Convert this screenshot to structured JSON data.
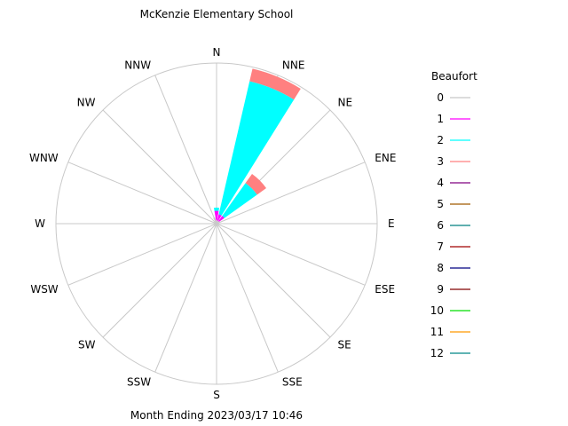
{
  "chart_data": {
    "type": "windrose",
    "title": "McKenzie Elementary School",
    "footer": "Month Ending 2023/03/17 10:46",
    "directions": [
      "N",
      "NNE",
      "NE",
      "ENE",
      "E",
      "ESE",
      "SE",
      "SSE",
      "S",
      "SSW",
      "SW",
      "WSW",
      "W",
      "WNW",
      "NW",
      "NNW"
    ],
    "radial_max": 100,
    "grid": true,
    "legend": {
      "title": "Beaufort",
      "placement": "right",
      "entries": [
        {
          "label": "0",
          "color": "#c8c8c8"
        },
        {
          "label": "1",
          "color": "#ff00ff"
        },
        {
          "label": "2",
          "color": "#00ffff"
        },
        {
          "label": "3",
          "color": "#ff8080"
        },
        {
          "label": "4",
          "color": "#800080"
        },
        {
          "label": "5",
          "color": "#a05a00"
        },
        {
          "label": "6",
          "color": "#008080"
        },
        {
          "label": "7",
          "color": "#a00000"
        },
        {
          "label": "8",
          "color": "#000080"
        },
        {
          "label": "9",
          "color": "#800000"
        },
        {
          "label": "10",
          "color": "#00dd00"
        },
        {
          "label": "11",
          "color": "#ff9900"
        },
        {
          "label": "12",
          "color": "#008888"
        }
      ]
    },
    "series": [
      {
        "direction": "N",
        "segments": [
          {
            "beaufort": "0",
            "value": 2
          },
          {
            "beaufort": "1",
            "value": 6
          },
          {
            "beaufort": "2",
            "value": 2
          }
        ]
      },
      {
        "direction": "NNE",
        "segments": [
          {
            "beaufort": "0",
            "value": 2
          },
          {
            "beaufort": "1",
            "value": 4
          },
          {
            "beaufort": "2",
            "value": 85
          },
          {
            "beaufort": "3",
            "value": 8
          }
        ]
      },
      {
        "direction": "NE",
        "segments": [
          {
            "beaufort": "0",
            "value": 2
          },
          {
            "beaufort": "1",
            "value": 4
          },
          {
            "beaufort": "2",
            "value": 25
          },
          {
            "beaufort": "3",
            "value": 7
          }
        ]
      },
      {
        "direction": "NNW",
        "segments": [
          {
            "beaufort": "0",
            "value": 4
          }
        ]
      }
    ]
  }
}
